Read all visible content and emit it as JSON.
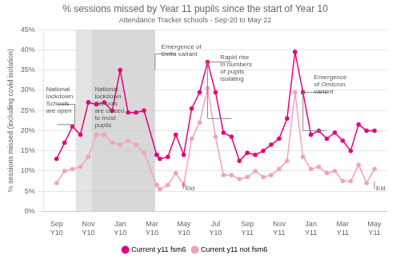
{
  "chart_data": {
    "type": "line",
    "title": "% sessions missed by Year 11 pupils since the start of Year 10",
    "subtitle": "Attendance Tracker schools - Sep‧20 to May‧22",
    "y_label": "% sessions missed (including covid isolation)",
    "xlim": [
      -0.8,
      20.8
    ],
    "xticks": [
      {
        "value": 0,
        "label": "Sep\nY10"
      },
      {
        "value": 2,
        "label": "Nov\nY10"
      },
      {
        "value": 4,
        "label": "Jan\nY10"
      },
      {
        "value": 6,
        "label": "Mar\nY10"
      },
      {
        "value": 8,
        "label": "May\nY10"
      },
      {
        "value": 10,
        "label": "Jul\nY10"
      },
      {
        "value": 12,
        "label": "Sep\nY11"
      },
      {
        "value": 14,
        "label": "Nov\nY11"
      },
      {
        "value": 16,
        "label": "Jan\nY11"
      },
      {
        "value": 18,
        "label": "Mar\nY11"
      },
      {
        "value": 20,
        "label": "May\nY11"
      }
    ],
    "ylim": [
      0,
      0.45
    ],
    "yticks": [
      {
        "value": 0.0,
        "label": "0%"
      },
      {
        "value": 0.05,
        "label": "5%"
      },
      {
        "value": 0.1,
        "label": "10%"
      },
      {
        "value": 0.15,
        "label": "15%"
      },
      {
        "value": 0.2,
        "label": "20%"
      },
      {
        "value": 0.25,
        "label": "25%"
      },
      {
        "value": 0.3,
        "label": "30%"
      },
      {
        "value": 0.35,
        "label": "35%"
      },
      {
        "value": 0.4,
        "label": "40%"
      },
      {
        "value": 0.45,
        "label": "45%"
      }
    ],
    "grid": true,
    "legend": "bottom",
    "series": [
      {
        "name": "Current y11 fsm6",
        "color": "#e6007e",
        "marker": "circle",
        "segments": [
          {
            "x": [
              0,
              0.5,
              1.0,
              1.5,
              2.0
            ],
            "values": [
              0.13,
              0.17,
              0.21,
              0.19,
              0.27
            ]
          },
          {
            "x": [
              6.3,
              6.5,
              7.0,
              7.5,
              8.0,
              8.5,
              9.0,
              9.5,
              10.0,
              10.5,
              11.0,
              11.5,
              12.0,
              12.5,
              13.0,
              13.5,
              14.0,
              14.5,
              15.0,
              15.5,
              16.0,
              16.5,
              17.0,
              17.5,
              18.0,
              18.5,
              19.0,
              19.5,
              20.0
            ],
            "values": [
              0.14,
              0.13,
              0.135,
              0.19,
              0.14,
              0.255,
              0.295,
              0.37,
              0.295,
              0.195,
              0.185,
              0.125,
              0.145,
              0.14,
              0.15,
              0.165,
              0.18,
              0.23,
              0.395,
              0.295,
              0.19,
              0.2,
              0.18,
              0.195,
              0.175,
              0.15,
              0.215,
              0.2,
              0.2
            ]
          },
          {
            "x": [
              2.0,
              2.5,
              3.0,
              3.5,
              4.0,
              4.5,
              5.0,
              5.5,
              6.3
            ],
            "values": [
              0.27,
              0.265,
              0.27,
              0.249,
              0.35,
              0.245,
              0.245,
              0.25,
              0.14
            ]
          }
        ]
      },
      {
        "name": "Current y11 not fsm6",
        "color": "#f4a0c0",
        "marker": "circle",
        "segments": [
          {
            "x": [
              0,
              0.5,
              1.0,
              1.5,
              2.0
            ],
            "values": [
              0.07,
              0.1,
              0.105,
              0.11,
              0.135
            ]
          },
          {
            "x": [
              6.3,
              6.5,
              7.0,
              7.5,
              8.0,
              8.5,
              9.0,
              9.5,
              10.0,
              10.5,
              11.0,
              11.5,
              12.0,
              12.5,
              13.0,
              13.5,
              14.0,
              14.5,
              15.0,
              15.5,
              16.0,
              16.5,
              17.0,
              17.5,
              18.0,
              18.5,
              19.0,
              19.5,
              20.0
            ],
            "values": [
              0.065,
              0.055,
              0.065,
              0.095,
              0.065,
              0.18,
              0.22,
              0.305,
              0.185,
              0.09,
              0.09,
              0.08,
              0.085,
              0.1,
              0.085,
              0.09,
              0.105,
              0.125,
              0.295,
              0.135,
              0.105,
              0.11,
              0.095,
              0.1,
              0.075,
              0.075,
              0.115,
              0.07,
              0.105
            ]
          },
          {
            "x": [
              2.0,
              2.5,
              3.0,
              3.5,
              4.0,
              4.5,
              5.0,
              5.5,
              6.3
            ],
            "values": [
              0.135,
              0.19,
              0.19,
              0.17,
              0.165,
              0.175,
              0.165,
              0.145,
              0.065
            ]
          }
        ]
      }
    ],
    "shaded_regions": [
      {
        "xmin": 1.2,
        "xmax": 2.2,
        "color": "#d8d8d8"
      },
      {
        "xmin": 2.2,
        "xmax": 6.2,
        "color": "#c8c8c8"
      }
    ],
    "annotation_lines": [
      {
        "x": [
          0.05,
          1.15,
          1.15,
          0.05
        ],
        "y": [
          0.265,
          0.265,
          0.215,
          0.215
        ]
      },
      {
        "x": [
          6.2,
          6.2,
          7.5
        ],
        "y": [
          0.35,
          0.39,
          0.39
        ]
      },
      {
        "x": [
          11.0,
          9.5,
          9.5,
          11.0
        ],
        "y": [
          0.37,
          0.37,
          0.23,
          0.23
        ]
      },
      {
        "x": [
          17.0,
          15.5,
          15.5,
          17.0
        ],
        "y": [
          0.295,
          0.295,
          0.2,
          0.2
        ]
      },
      {
        "x": [
          8.0,
          8.0
        ],
        "y": [
          0.055,
          0.075
        ]
      },
      {
        "x": [
          20.0,
          20.0
        ],
        "y": [
          0.055,
          0.075
        ]
      }
    ],
    "annotations": [
      {
        "text": "National\nlockdown\nSchools\nare open",
        "x": -0.65,
        "y": 0.31
      },
      {
        "text": "Emergence of\nDelta variant",
        "x": 6.6,
        "y": 0.415
      },
      {
        "text": "National\nlockdown\nSchools\nare closed\nto most\npupils",
        "x": 2.4,
        "y": 0.31
      },
      {
        "text": "Rapid rise\nin numbers\nof pupils\nisolating",
        "x": 10.3,
        "y": 0.39
      },
      {
        "text": "Emergence\nof Omicron\nvariant",
        "x": 16.2,
        "y": 0.34
      },
      {
        "text": "Eid",
        "x": 8.1,
        "y": 0.065
      },
      {
        "text": "Eid",
        "x": 20.1,
        "y": 0.065
      }
    ]
  }
}
